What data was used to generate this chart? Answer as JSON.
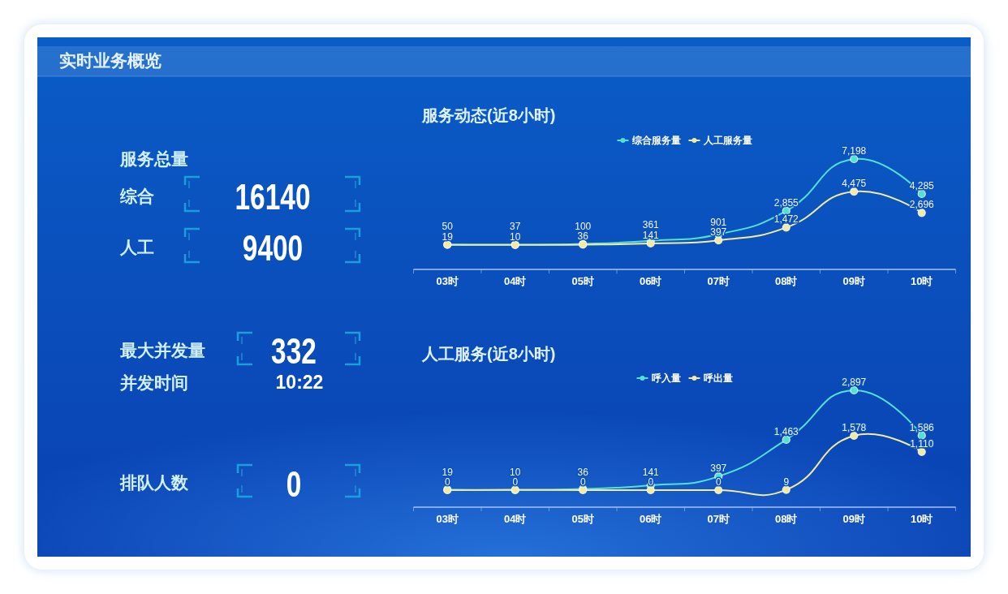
{
  "chart_data": [
    {
      "type": "other",
      "title": "实时业务概览",
      "annotations": [
        "服务总量",
        "综合",
        "16140",
        "人工",
        "9400",
        "最大并发量",
        "332",
        "并发时间",
        "10:22",
        "排队人数",
        "0"
      ]
    },
    {
      "type": "line",
      "title": "服务动态(近8小时)",
      "categories": [
        "03时",
        "04时",
        "05时",
        "06时",
        "07时",
        "08时",
        "09时",
        "10时"
      ],
      "series": [
        {
          "name": "综合服务量",
          "color": "#52e2d2",
          "values": [
            50,
            37,
            100,
            361,
            901,
            2855,
            7198,
            4285
          ],
          "value_labels": [
            "50",
            "37",
            "100",
            "361",
            "901",
            "2,855",
            "7,198",
            "4,285"
          ]
        },
        {
          "name": "人工服务量",
          "color": "#f3ec9e",
          "values": [
            19,
            10,
            36,
            141,
            397,
            1472,
            4475,
            2696
          ],
          "value_labels": [
            "19",
            "10",
            "36",
            "141",
            "397",
            "1,472",
            "4,475",
            "2,696"
          ]
        }
      ],
      "legend": "top",
      "marker": "circle",
      "line_style": "solid",
      "tick_labels": "x"
    },
    {
      "type": "line",
      "title": "人工服务(近8小时)",
      "categories": [
        "03时",
        "04时",
        "05时",
        "06时",
        "07时",
        "08时",
        "09时",
        "10时"
      ],
      "series": [
        {
          "name": "呼入量",
          "color": "#52e2d2",
          "values": [
            19,
            0,
            36,
            141,
            397,
            1463,
            2897,
            1586
          ],
          "value_labels": [
            "19",
            "0",
            "36",
            "141",
            "397",
            "1,463",
            "2,897",
            "1,586"
          ]
        },
        {
          "name": "呼出量",
          "color": "#f3ec9e",
          "values": [
            0,
            10,
            0,
            0,
            0,
            9,
            1578,
            1110
          ],
          "value_labels": [
            "0",
            "10",
            "0",
            "0",
            "0",
            "9",
            "1,578",
            "1,110"
          ]
        }
      ],
      "legend": "top",
      "marker": "circle",
      "line_style": "solid",
      "tick_labels": "x"
    }
  ]
}
